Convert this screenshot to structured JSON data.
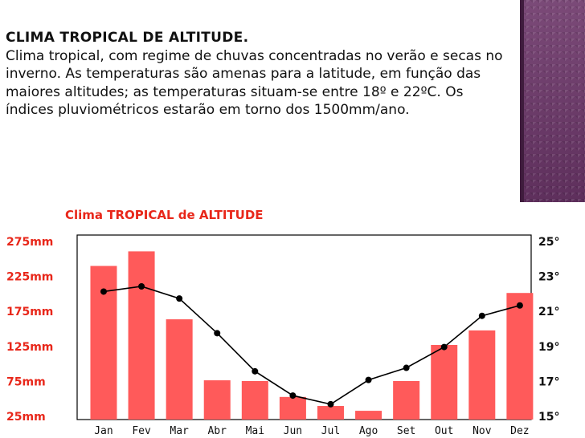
{
  "slide": {
    "heading": "CLIMA TROPICAL DE ALTITUDE.",
    "body": "Clima tropical, com regime de chuvas concentradas no verão e secas no inverno. As temperaturas são amenas para a latitude, em função das maiores altitudes; as temperaturas situam-se entre 18º e 22ºC.  Os índices pluviométricos estarão em torno dos 1500mm/ano."
  },
  "colors": {
    "bars": "#ff5a5a",
    "line": "#000000",
    "title": "#e8271a",
    "deco": "#6a3a67"
  },
  "chart_data": {
    "type": "bar",
    "title": "Clima TROPICAL de ALTITUDE",
    "categories": [
      "Jan",
      "Fev",
      "Mar",
      "Abr",
      "Mai",
      "Jun",
      "Jul",
      "Ago",
      "Set",
      "Out",
      "Nov",
      "Dez"
    ],
    "series": [
      {
        "values": [
          242,
          263,
          165,
          77,
          76,
          53,
          40,
          33,
          76,
          128,
          149,
          203
        ]
      },
      {
        "type": "line",
        "values": [
          22.2,
          22.5,
          21.8,
          19.8,
          17.6,
          16.2,
          15.7,
          17.1,
          17.8,
          19.0,
          20.8,
          21.4
        ]
      }
    ],
    "y_left_ticks": [
      "275mm",
      "225mm",
      "175mm",
      "125mm",
      "75mm",
      "25mm"
    ],
    "y_right_ticks": [
      "25°",
      "23°",
      "21°",
      "19°",
      "17°",
      "15°"
    ],
    "y_left_range": [
      25,
      275
    ],
    "y_right_range": [
      15,
      25
    ],
    "grid": false
  }
}
